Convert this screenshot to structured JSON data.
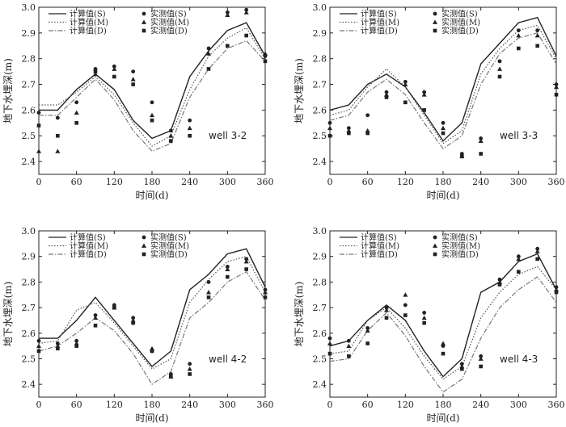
{
  "chart_data": [
    {
      "type": "line",
      "annotation": "well 3-2",
      "xlabel": "时间(d)",
      "ylabel": "地下水埋深(m)",
      "xlim": [
        0,
        360
      ],
      "ylim": [
        2.35,
        3.0
      ],
      "xticks": [
        0,
        60,
        120,
        180,
        240,
        300,
        360
      ],
      "yticks": [
        2.4,
        2.5,
        2.6,
        2.7,
        2.8,
        2.9,
        3.0
      ],
      "legend": [
        "计算值(S)",
        "计算值(M)",
        "计算值(D)",
        "实测值(S)",
        "实测值(M)",
        "实测值(D)"
      ],
      "series": [
        {
          "name": "计算值(S)",
          "style": "solid",
          "x": [
            0,
            30,
            60,
            90,
            120,
            150,
            180,
            210,
            240,
            270,
            300,
            330,
            360
          ],
          "y": [
            2.6,
            2.6,
            2.68,
            2.74,
            2.68,
            2.56,
            2.49,
            2.52,
            2.73,
            2.83,
            2.91,
            2.94,
            2.81
          ]
        },
        {
          "name": "计算值(M)",
          "style": "dotted",
          "x": [
            0,
            30,
            60,
            90,
            120,
            150,
            180,
            210,
            240,
            270,
            300,
            330,
            360
          ],
          "y": [
            2.62,
            2.62,
            2.67,
            2.73,
            2.66,
            2.55,
            2.46,
            2.5,
            2.68,
            2.81,
            2.88,
            2.92,
            2.8
          ]
        },
        {
          "name": "计算值(D)",
          "style": "dashdot",
          "x": [
            0,
            30,
            60,
            90,
            120,
            150,
            180,
            210,
            240,
            270,
            300,
            330,
            360
          ],
          "y": [
            2.58,
            2.58,
            2.65,
            2.72,
            2.64,
            2.52,
            2.44,
            2.47,
            2.65,
            2.76,
            2.84,
            2.87,
            2.79
          ]
        },
        {
          "name": "实测值(S)",
          "style": "circle",
          "x": [
            0,
            30,
            60,
            90,
            120,
            150,
            180,
            210,
            240,
            270,
            300,
            330,
            360
          ],
          "y": [
            2.59,
            2.57,
            2.63,
            2.76,
            2.77,
            2.75,
            2.63,
            2.52,
            2.56,
            2.84,
            2.98,
            2.99,
            2.81
          ]
        },
        {
          "name": "实测值(M)",
          "style": "triangle",
          "x": [
            0,
            30,
            60,
            90,
            120,
            150,
            180,
            210,
            240,
            270,
            300,
            330,
            360
          ],
          "y": [
            2.44,
            2.44,
            2.59,
            2.74,
            2.76,
            2.72,
            2.58,
            2.5,
            2.53,
            2.82,
            2.97,
            2.98,
            2.82
          ]
        },
        {
          "name": "实测值(D)",
          "style": "square",
          "x": [
            0,
            30,
            60,
            90,
            120,
            150,
            180,
            210,
            240,
            270,
            300,
            330,
            360
          ],
          "y": [
            2.54,
            2.5,
            2.55,
            2.75,
            2.73,
            2.7,
            2.56,
            2.48,
            2.5,
            2.76,
            2.85,
            2.89,
            2.79
          ]
        }
      ]
    },
    {
      "type": "line",
      "annotation": "well 3-3",
      "xlabel": "时间(d)",
      "ylabel": "地下水埋深(m)",
      "xlim": [
        0,
        360
      ],
      "ylim": [
        2.35,
        3.0
      ],
      "xticks": [
        0,
        60,
        120,
        180,
        240,
        300,
        360
      ],
      "yticks": [
        2.4,
        2.5,
        2.6,
        2.7,
        2.8,
        2.9,
        3.0
      ],
      "legend": [
        "计算值(S)",
        "计算值(M)",
        "计算值(D)",
        "实测值(S)",
        "实测值(M)",
        "实测值(D)"
      ],
      "series": [
        {
          "name": "计算值(S)",
          "style": "solid",
          "x": [
            0,
            30,
            60,
            90,
            120,
            150,
            180,
            210,
            240,
            270,
            300,
            330,
            360
          ],
          "y": [
            2.6,
            2.62,
            2.7,
            2.74,
            2.69,
            2.59,
            2.48,
            2.55,
            2.78,
            2.86,
            2.94,
            2.96,
            2.81
          ]
        },
        {
          "name": "计算值(M)",
          "style": "dotted",
          "x": [
            0,
            30,
            60,
            90,
            120,
            150,
            180,
            210,
            240,
            270,
            300,
            330,
            360
          ],
          "y": [
            2.58,
            2.6,
            2.69,
            2.76,
            2.69,
            2.58,
            2.47,
            2.52,
            2.74,
            2.84,
            2.91,
            2.93,
            2.8
          ]
        },
        {
          "name": "计算值(D)",
          "style": "dashdot",
          "x": [
            0,
            30,
            60,
            90,
            120,
            150,
            180,
            210,
            240,
            270,
            300,
            330,
            360
          ],
          "y": [
            2.56,
            2.58,
            2.67,
            2.72,
            2.66,
            2.55,
            2.45,
            2.5,
            2.7,
            2.82,
            2.88,
            2.9,
            2.78
          ]
        },
        {
          "name": "实测值(S)",
          "style": "circle",
          "x": [
            0,
            30,
            60,
            90,
            120,
            150,
            180,
            210,
            240,
            270,
            300,
            330,
            360
          ],
          "y": [
            2.55,
            2.53,
            2.58,
            2.67,
            2.71,
            2.67,
            2.55,
            2.43,
            2.49,
            2.79,
            2.91,
            2.91,
            2.7
          ]
        },
        {
          "name": "实测值(M)",
          "style": "triangle",
          "x": [
            0,
            30,
            60,
            90,
            120,
            150,
            180,
            210,
            240,
            270,
            300,
            330,
            360
          ],
          "y": [
            2.53,
            2.52,
            2.52,
            2.66,
            2.7,
            2.66,
            2.53,
            2.42,
            2.48,
            2.76,
            2.89,
            2.89,
            2.69
          ]
        },
        {
          "name": "实测值(D)",
          "style": "square",
          "x": [
            0,
            30,
            60,
            90,
            120,
            150,
            180,
            210,
            240,
            270,
            300,
            330,
            360
          ],
          "y": [
            2.5,
            2.51,
            2.51,
            2.65,
            2.63,
            2.6,
            2.51,
            2.42,
            2.43,
            2.73,
            2.84,
            2.85,
            2.66
          ]
        }
      ]
    },
    {
      "type": "line",
      "annotation": "well 4-2",
      "xlabel": "时间(d)",
      "ylabel": "地下水埋深(m)",
      "xlim": [
        0,
        360
      ],
      "ylim": [
        2.35,
        3.0
      ],
      "xticks": [
        0,
        60,
        120,
        180,
        240,
        300,
        360
      ],
      "yticks": [
        2.4,
        2.5,
        2.6,
        2.7,
        2.8,
        2.9,
        3.0
      ],
      "legend": [
        "计算值(S)",
        "计算值(M)",
        "计算值(D)",
        "实测值(S)",
        "实测值(M)",
        "实测值(D)"
      ],
      "series": [
        {
          "name": "计算值(S)",
          "style": "solid",
          "x": [
            0,
            30,
            60,
            90,
            120,
            150,
            180,
            210,
            240,
            270,
            300,
            330,
            360
          ],
          "y": [
            2.58,
            2.58,
            2.65,
            2.74,
            2.65,
            2.56,
            2.47,
            2.53,
            2.77,
            2.83,
            2.91,
            2.93,
            2.78
          ]
        },
        {
          "name": "计算值(M)",
          "style": "dotted",
          "x": [
            0,
            30,
            60,
            90,
            120,
            150,
            180,
            210,
            240,
            270,
            300,
            330,
            360
          ],
          "y": [
            2.56,
            2.57,
            2.69,
            2.72,
            2.64,
            2.55,
            2.46,
            2.5,
            2.72,
            2.81,
            2.88,
            2.9,
            2.76
          ]
        },
        {
          "name": "计算值(D)",
          "style": "dashdot",
          "x": [
            0,
            30,
            60,
            90,
            120,
            150,
            180,
            210,
            240,
            270,
            300,
            330,
            360
          ],
          "y": [
            2.53,
            2.55,
            2.6,
            2.66,
            2.61,
            2.52,
            2.4,
            2.45,
            2.66,
            2.72,
            2.8,
            2.84,
            2.73
          ]
        },
        {
          "name": "实测值(S)",
          "style": "circle",
          "x": [
            0,
            30,
            60,
            90,
            120,
            150,
            180,
            210,
            240,
            270,
            300,
            330,
            360
          ],
          "y": [
            2.57,
            2.56,
            2.57,
            2.67,
            2.71,
            2.66,
            2.53,
            2.44,
            2.48,
            2.8,
            2.86,
            2.89,
            2.77
          ]
        },
        {
          "name": "实测值(M)",
          "style": "triangle",
          "x": [
            0,
            30,
            60,
            90,
            120,
            150,
            180,
            210,
            240,
            270,
            300,
            330,
            360
          ],
          "y": [
            2.55,
            2.55,
            2.56,
            2.66,
            2.7,
            2.65,
            2.54,
            2.43,
            2.46,
            2.76,
            2.85,
            2.88,
            2.76
          ]
        },
        {
          "name": "实测值(D)",
          "style": "square",
          "x": [
            0,
            30,
            60,
            90,
            120,
            150,
            180,
            210,
            240,
            270,
            300,
            330,
            360
          ],
          "y": [
            2.53,
            2.54,
            2.55,
            2.63,
            2.7,
            2.64,
            2.53,
            2.43,
            2.44,
            2.74,
            2.82,
            2.85,
            2.74
          ]
        }
      ]
    },
    {
      "type": "line",
      "annotation": "well 4-3",
      "xlabel": "时间(d)",
      "ylabel": "地下水埋深(m)",
      "xlim": [
        0,
        360
      ],
      "ylim": [
        2.35,
        3.0
      ],
      "xticks": [
        0,
        60,
        120,
        180,
        240,
        300,
        360
      ],
      "yticks": [
        2.4,
        2.5,
        2.6,
        2.7,
        2.8,
        2.9,
        3.0
      ],
      "legend": [
        "计算值(S)",
        "计算值(M)",
        "计算值(D)",
        "实测值(S)",
        "实测值(M)",
        "实测值(D)"
      ],
      "series": [
        {
          "name": "计算值(S)",
          "style": "solid",
          "x": [
            0,
            30,
            60,
            90,
            120,
            150,
            180,
            210,
            240,
            270,
            300,
            330,
            360
          ],
          "y": [
            2.55,
            2.57,
            2.65,
            2.71,
            2.65,
            2.53,
            2.43,
            2.5,
            2.76,
            2.8,
            2.88,
            2.91,
            2.77
          ]
        },
        {
          "name": "计算值(M)",
          "style": "dotted",
          "x": [
            0,
            30,
            60,
            90,
            120,
            150,
            180,
            210,
            240,
            270,
            300,
            330,
            360
          ],
          "y": [
            2.52,
            2.53,
            2.65,
            2.7,
            2.62,
            2.51,
            2.42,
            2.47,
            2.66,
            2.76,
            2.83,
            2.86,
            2.77
          ]
        },
        {
          "name": "计算值(D)",
          "style": "dashdot",
          "x": [
            0,
            30,
            60,
            90,
            120,
            150,
            180,
            210,
            240,
            270,
            300,
            330,
            360
          ],
          "y": [
            2.49,
            2.5,
            2.61,
            2.68,
            2.59,
            2.47,
            2.37,
            2.42,
            2.58,
            2.7,
            2.77,
            2.82,
            2.72
          ]
        },
        {
          "name": "实测值(S)",
          "style": "circle",
          "x": [
            0,
            30,
            60,
            90,
            120,
            150,
            180,
            210,
            240,
            270,
            300,
            330,
            360
          ],
          "y": [
            2.58,
            2.57,
            2.62,
            2.7,
            2.71,
            2.68,
            2.55,
            2.48,
            2.51,
            2.81,
            2.9,
            2.93,
            2.78
          ]
        },
        {
          "name": "实测值(M)",
          "style": "triangle",
          "x": [
            0,
            30,
            60,
            90,
            120,
            150,
            180,
            210,
            240,
            270,
            300,
            330,
            360
          ],
          "y": [
            2.56,
            2.55,
            2.61,
            2.69,
            2.75,
            2.66,
            2.56,
            2.47,
            2.5,
            2.8,
            2.89,
            2.92,
            2.77
          ]
        },
        {
          "name": "实测值(D)",
          "style": "square",
          "x": [
            0,
            30,
            60,
            90,
            120,
            150,
            180,
            210,
            240,
            270,
            300,
            330,
            360
          ],
          "y": [
            2.52,
            2.51,
            2.56,
            2.66,
            2.67,
            2.64,
            2.52,
            2.46,
            2.47,
            2.79,
            2.84,
            2.89,
            2.76
          ]
        }
      ]
    }
  ]
}
